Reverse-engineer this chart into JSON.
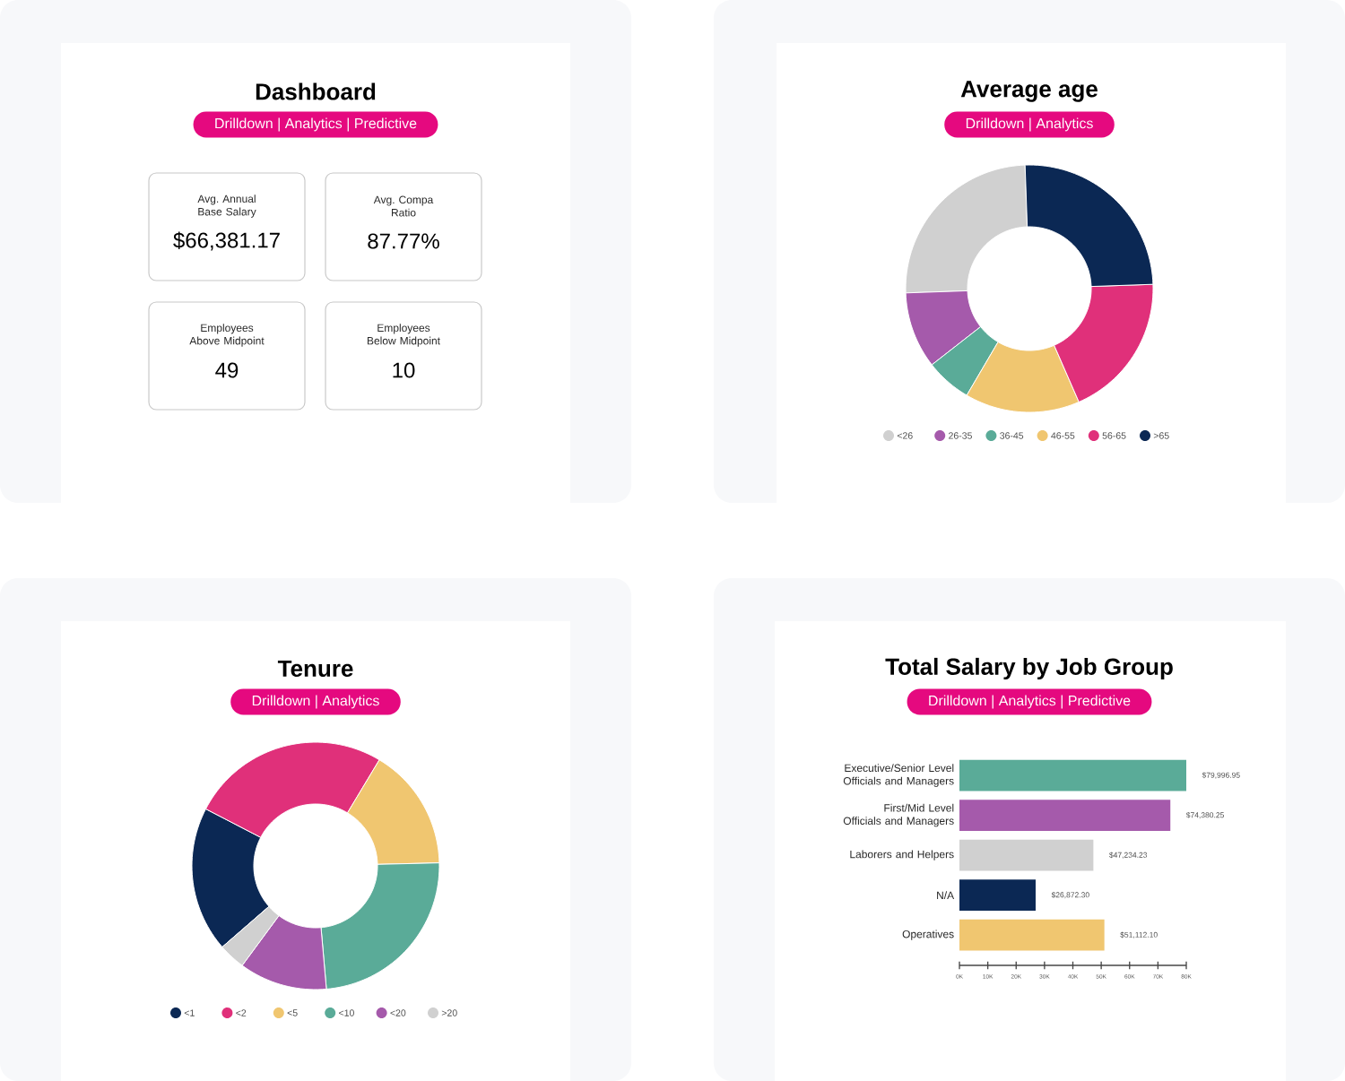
{
  "chart_data": [
    {
      "type": "other",
      "title": "Dashboard",
      "subtitle": "Drilldown | Analytics | Predictive",
      "annotations": [
        "Avg. Annual Base Salary",
        "$66,381.17",
        "Avg. Compa Ratio",
        "87.77%",
        "Employees Above Midpoint",
        "49",
        "Employees Below Midpoint",
        "10"
      ]
    },
    {
      "type": "donut",
      "title": "Average age",
      "subtitle": "Drilldown | Analytics",
      "categories": [
        "<26",
        "26-35",
        "36-45",
        "46-55",
        "56-65",
        ">65"
      ],
      "values": [
        25,
        10,
        6,
        15,
        19,
        25
      ],
      "colors": [
        "#d0d0d0",
        "#a55aab",
        "#5aab98",
        "#f0c670",
        "#e0307a",
        "#0b2854"
      ],
      "legend": "bottom"
    },
    {
      "type": "donut",
      "title": "Tenure",
      "subtitle": "Drilldown | Analytics",
      "categories": [
        "<1",
        "<2",
        "<5",
        "<10",
        "<20",
        ">20"
      ],
      "values": [
        19,
        26,
        16,
        24,
        11.5,
        3.5
      ],
      "colors": [
        "#0b2854",
        "#e0307a",
        "#f0c670",
        "#5aab98",
        "#a55aab",
        "#d0d0d0"
      ],
      "legend": "bottom"
    },
    {
      "type": "bar",
      "title": "Total Salary by Job Group",
      "subtitle": "Drilldown | Analytics | Predictive",
      "orientation": "horizontal",
      "categories": [
        "Executive/Senior Level Officials and Managers",
        "First/Mid Level Officials and Managers",
        "Laborers and Helpers",
        "N/A",
        "Operatives"
      ],
      "values": [
        79996.95,
        74380.25,
        47234.23,
        26872.3,
        51112.1
      ],
      "value_labels": [
        "$79,996.95",
        "$74,380.25",
        "$47,234.23",
        "$26,872.30",
        "$51,112.10"
      ],
      "colors": [
        "#5aab98",
        "#a55aab",
        "#d0d0d0",
        "#0b2854",
        "#f0c670"
      ],
      "xlim": [
        0,
        80000
      ],
      "xticks": [
        {
          "value": 0,
          "label": "0K"
        },
        {
          "value": 10000,
          "label": "10K"
        },
        {
          "value": 20000,
          "label": "20K"
        },
        {
          "value": 30000,
          "label": "30K"
        },
        {
          "value": 40000,
          "label": "40K"
        },
        {
          "value": 50000,
          "label": "50K"
        },
        {
          "value": 60000,
          "label": "60K"
        },
        {
          "value": 70000,
          "label": "70K"
        },
        {
          "value": 80000,
          "label": "80K"
        }
      ]
    }
  ]
}
